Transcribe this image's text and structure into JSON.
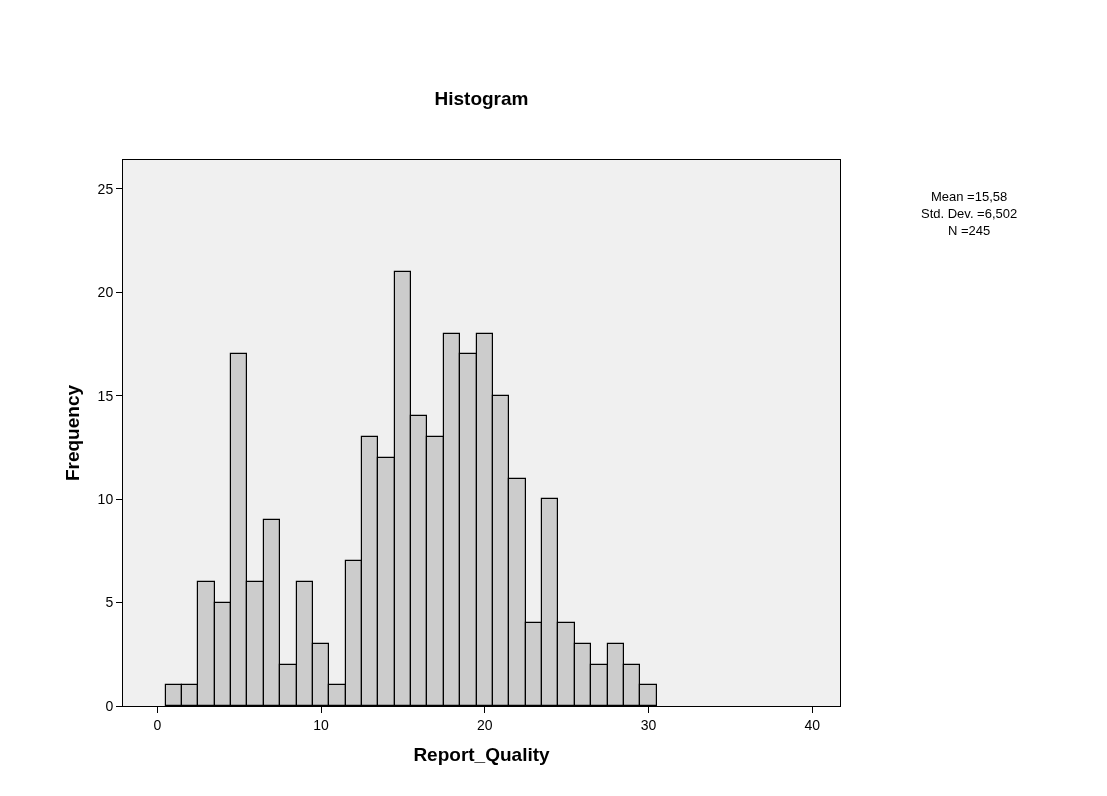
{
  "chart_data": {
    "type": "histogram",
    "title": "Histogram",
    "xlabel": "Report_Quality",
    "ylabel": "Frequency",
    "bins": [
      0.5,
      1.5,
      2.5,
      3.5,
      4.5,
      5.5,
      6.5,
      7.5,
      8.5,
      9.5,
      10.5,
      11.5,
      12.5,
      13.5,
      14.5,
      15.5,
      16.5,
      17.5,
      18.5,
      19.5,
      20.5,
      21.5,
      22.5,
      23.5,
      24.5,
      25.5,
      26.5,
      27.5,
      28.5,
      29.5,
      30.5
    ],
    "values": [
      1,
      1,
      6,
      5,
      17,
      6,
      9,
      2,
      6,
      3,
      1,
      7,
      13,
      12,
      21,
      14,
      13,
      18,
      17,
      18,
      15,
      11,
      4,
      10,
      4,
      3,
      2,
      3,
      2,
      1
    ],
    "color": "#cccccc",
    "xlim": [
      -2.1,
      41.7
    ],
    "xticks": [
      0,
      10,
      20,
      30,
      40
    ],
    "ylim": [
      0,
      26.4
    ],
    "yticks": [
      0,
      5,
      10,
      15,
      20,
      25
    ],
    "grid": false,
    "annotations": [
      "Mean =15,58\nStd. Dev. =6,502\nN =245"
    ]
  }
}
